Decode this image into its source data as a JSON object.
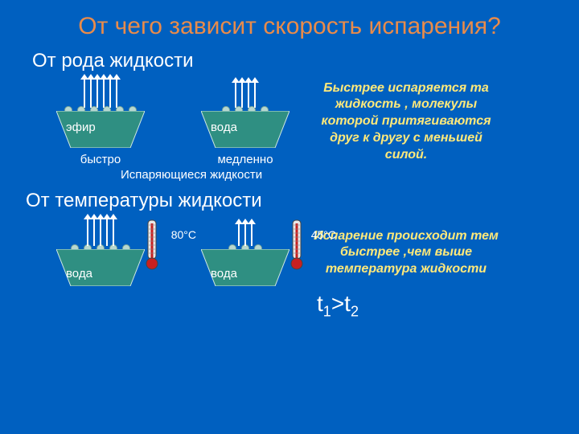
{
  "colors": {
    "bg": "#0060c0",
    "title": "#e98b4a",
    "note": "#ffe97a",
    "beaker_fill": "#2f8f82",
    "beaker_stroke": "#cfe8e2",
    "mol_fill": "#b8d8d0",
    "mol_stroke": "#7aa69c",
    "arrow": "#ffffff",
    "text": "#ffffff",
    "thermo_bulb": "#c82020",
    "thermo_body": "#e8e8e8",
    "thermo_outline": "#444444"
  },
  "title": "От чего зависит скорость испарения?",
  "section1": {
    "bullet": "От рода жидкости",
    "beaker_left": {
      "label": "эфир",
      "arrow_count": 6,
      "arrow_height": 36,
      "sub": "быстро"
    },
    "beaker_right": {
      "label": "вода",
      "arrow_count": 4,
      "arrow_height": 32,
      "sub": "медленно"
    },
    "caption": "Испаряющиеся жидкости",
    "note": "Быстрее испаряется та жидкость , молекулы которой притягиваются друг к другу с меньшей силой."
  },
  "section2": {
    "bullet": "От температуры жидкости",
    "beaker_left": {
      "label": "вода",
      "arrow_count": 5,
      "arrow_height": 34,
      "temp": "80°С"
    },
    "beaker_right": {
      "label": "вода",
      "arrow_count": 3,
      "arrow_height": 28,
      "temp": "45°С"
    },
    "formula_html": "t<sub>1</sub>&gt;t<sub>2</sub>",
    "note": "Испарение происходит тем быстрее ,чем выше температура жидкости"
  },
  "beaker_shape": {
    "top_w": 110,
    "bot_w": 74,
    "h": 46
  },
  "thermo": {
    "w": 18,
    "h": 64
  }
}
